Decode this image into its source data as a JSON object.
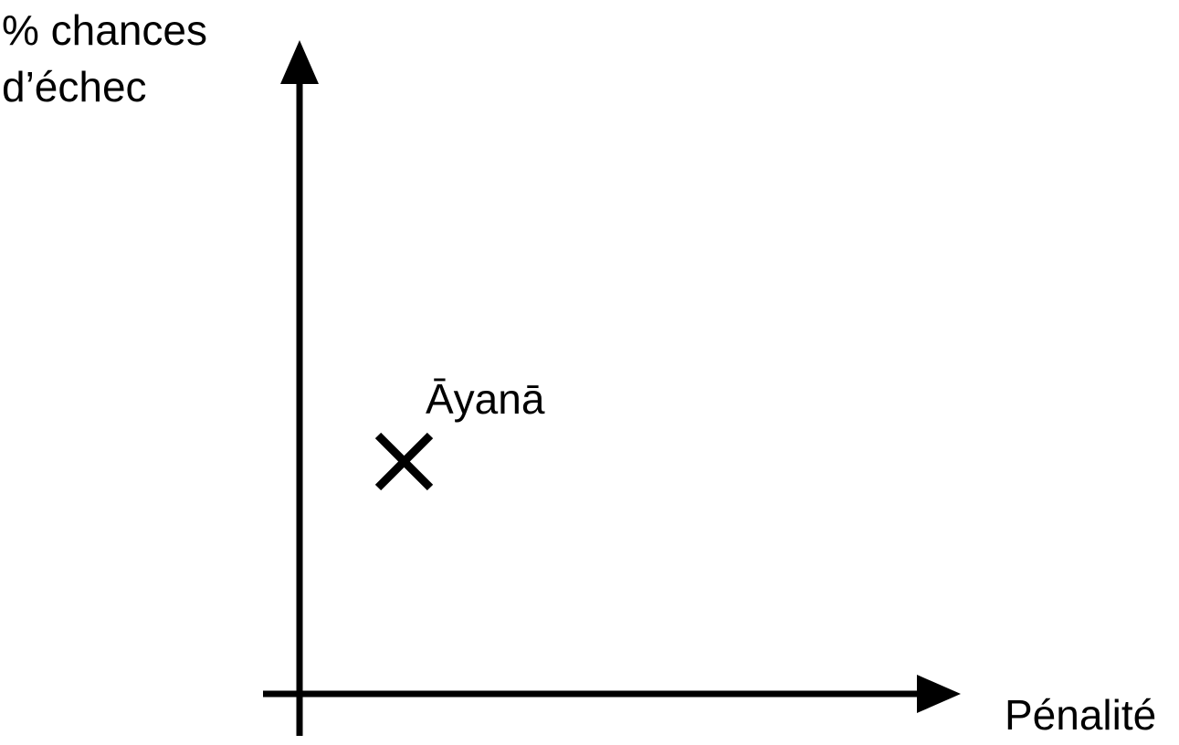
{
  "diagram": {
    "y_axis_label_line1": "% chances",
    "y_axis_label_line2": "d’échec",
    "x_axis_label": "Pénalité",
    "point_label": "Āyanā",
    "point_marker_icon": "cross-marker",
    "color": "#000000"
  }
}
